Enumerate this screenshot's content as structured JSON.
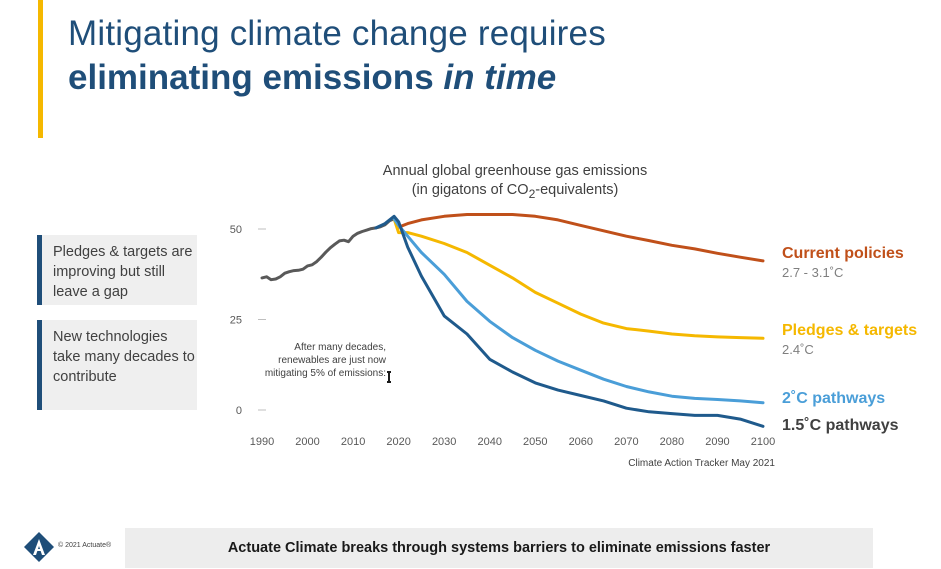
{
  "title": {
    "line1": "Mitigating climate change requires",
    "line2_bold": "eliminating emissions ",
    "line2_italic": "in time"
  },
  "callouts": [
    "Pledges & targets are improving but still leave a gap",
    "New technologies take many decades to contribute"
  ],
  "annotation": {
    "text1": "After many decades,",
    "text2": "renewables are just now",
    "text3": "mitigating 5% of emissions:"
  },
  "source": "Climate Action Tracker May 2021",
  "footer": "Actuate Climate breaks through systems barriers to eliminate emissions faster",
  "copyright": "© 2021 Actuate®",
  "colors": {
    "accent": "#F5B800",
    "navy": "#1F4E79",
    "current": "#C0501A",
    "pledges": "#F5B800",
    "two_c": "#4A9ED8",
    "onefive_c": "#1F5A8C",
    "historical": "#595959"
  },
  "chart_data": {
    "type": "line",
    "title": "Annual global greenhouse gas emissions",
    "subtitle_pre": "(in gigatons of CO",
    "subtitle_sub": "2",
    "subtitle_post": "-equivalents)",
    "xlim": [
      1990,
      2100
    ],
    "ylim": [
      0,
      55
    ],
    "x_ticks": [
      1990,
      2000,
      2010,
      2020,
      2030,
      2040,
      2050,
      2060,
      2070,
      2080,
      2090,
      2100
    ],
    "y_ticks": [
      0,
      25,
      50
    ],
    "grid": false,
    "series": [
      {
        "key": "historical",
        "x": [
          1990,
          1991,
          1992,
          1993,
          1994,
          1995,
          1996,
          1997,
          1998,
          1999,
          2000,
          2001,
          2002,
          2003,
          2004,
          2005,
          2006,
          2007,
          2008,
          2009,
          2010,
          2011,
          2012,
          2013,
          2014,
          2015,
          2016,
          2017,
          2018,
          2019
        ],
        "values": [
          36.5,
          36.8,
          36.0,
          36.2,
          36.8,
          37.8,
          38.2,
          38.5,
          38.6,
          38.9,
          39.8,
          40.1,
          41.0,
          42.2,
          43.6,
          44.8,
          45.8,
          46.7,
          46.9,
          46.5,
          48.0,
          48.8,
          49.3,
          49.7,
          50.1,
          50.3,
          50.6,
          51.2,
          52.3,
          52.8
        ]
      },
      {
        "key": "current",
        "name": "Current policies",
        "range": "2.7 - 3.1˚C",
        "x": [
          2019,
          2020,
          2022,
          2025,
          2030,
          2035,
          2040,
          2045,
          2050,
          2055,
          2060,
          2065,
          2070,
          2075,
          2080,
          2085,
          2090,
          2095,
          2100
        ],
        "values": [
          52.8,
          50.5,
          51.5,
          52.5,
          53.5,
          54.0,
          54.0,
          54.0,
          53.5,
          52.5,
          51.0,
          49.5,
          48.0,
          46.8,
          45.5,
          44.5,
          43.3,
          42.2,
          41.2
        ]
      },
      {
        "key": "pledges",
        "name": "Pledges & targets",
        "range": "2.4˚C",
        "x": [
          2019,
          2020,
          2022,
          2025,
          2030,
          2035,
          2040,
          2045,
          2050,
          2055,
          2060,
          2065,
          2070,
          2075,
          2080,
          2085,
          2090,
          2095,
          2100
        ],
        "values": [
          52.8,
          49.0,
          49.0,
          48.0,
          46.0,
          43.5,
          40.0,
          36.5,
          32.5,
          29.5,
          26.5,
          24.0,
          22.5,
          21.8,
          21.0,
          20.5,
          20.2,
          20.0,
          19.8
        ]
      },
      {
        "key": "two_c",
        "name": "2˚C pathways",
        "x": [
          2019,
          2020,
          2022,
          2025,
          2030,
          2035,
          2040,
          2045,
          2050,
          2055,
          2060,
          2065,
          2070,
          2075,
          2080,
          2085,
          2090,
          2095,
          2100
        ],
        "values": [
          52.8,
          51.0,
          48.0,
          43.5,
          37.5,
          30.0,
          24.5,
          20.0,
          16.5,
          13.5,
          11.0,
          8.5,
          6.5,
          5.0,
          3.8,
          3.2,
          2.9,
          2.5,
          2.0
        ]
      },
      {
        "key": "onefive_c",
        "name": "1.5˚C pathways",
        "x": [
          2015,
          2017,
          2019,
          2020,
          2022,
          2025,
          2030,
          2035,
          2040,
          2045,
          2050,
          2055,
          2060,
          2065,
          2070,
          2075,
          2080,
          2085,
          2090,
          2095,
          2100
        ],
        "values": [
          50.3,
          51.5,
          53.5,
          52.0,
          45.0,
          37.0,
          26.0,
          21.0,
          14.0,
          10.5,
          7.5,
          5.5,
          4.0,
          2.5,
          0.5,
          -0.5,
          -1.0,
          -1.5,
          -1.5,
          -2.5,
          -4.5
        ]
      }
    ]
  }
}
